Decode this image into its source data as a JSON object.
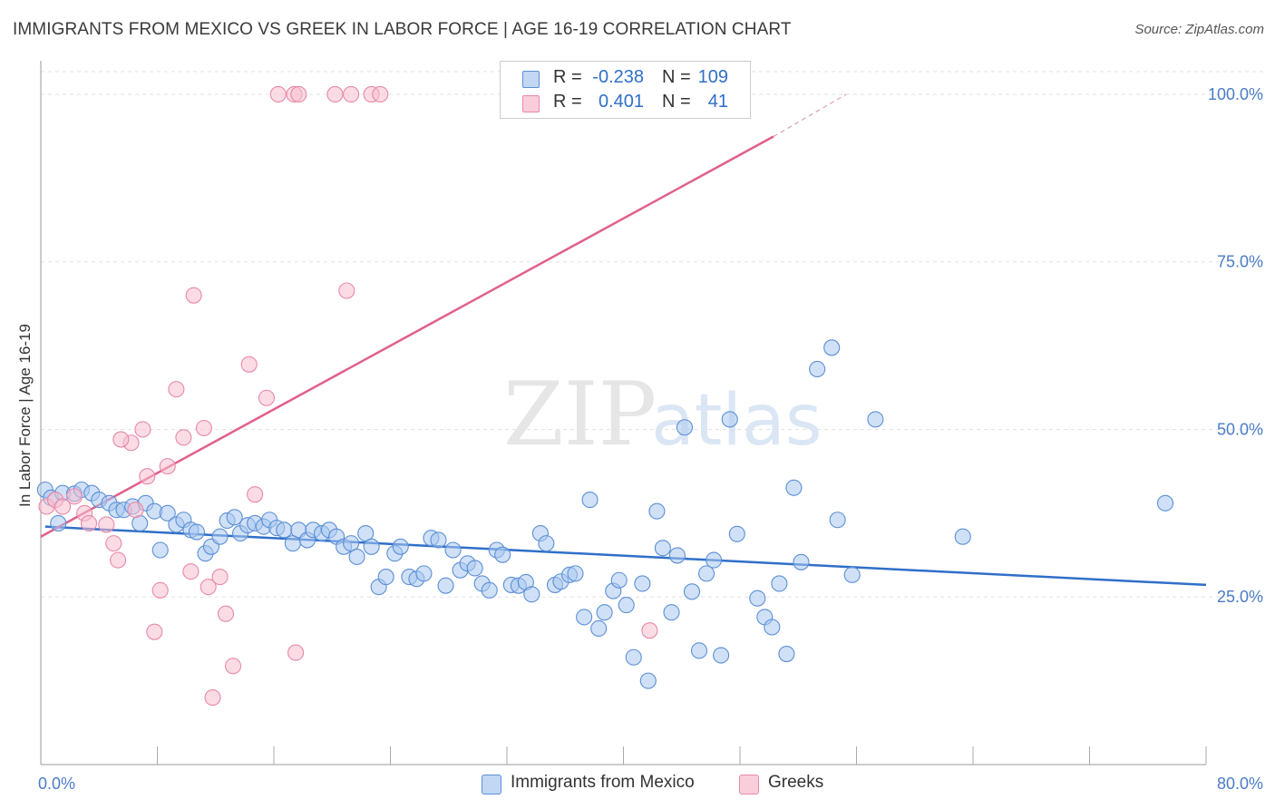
{
  "title": "IMMIGRANTS FROM MEXICO VS GREEK IN LABOR FORCE | AGE 16-19 CORRELATION CHART",
  "source": "Source: ZipAtlas.com",
  "watermark": {
    "zip": "ZIP",
    "atlas": "atlas"
  },
  "legend": {
    "r_label": "R =",
    "n_label": "N =",
    "rows": [
      {
        "r": "-0.238",
        "n": "109"
      },
      {
        "r": "0.401",
        "n": "41"
      }
    ]
  },
  "colors": {
    "mexico_fill": "#a9c8f0",
    "mexico_stroke": "#5b8fd6",
    "mexico_line": "#2f6fc9",
    "greek_fill": "#f7bfd0",
    "greek_stroke": "#e888a8",
    "greek_line": "#e0608a",
    "grid": "#e2e2e2",
    "tick_text": "#4a7cc7"
  },
  "chart_data": {
    "type": "scatter",
    "ylabel": "In Labor Force | Age 16-19",
    "xlim": [
      0,
      80
    ],
    "ylim": [
      0,
      105
    ],
    "y_ticks": [
      {
        "value": 25,
        "label": "25.0%"
      },
      {
        "value": 50,
        "label": "50.0%"
      },
      {
        "value": 75,
        "label": "75.0%"
      },
      {
        "value": 100,
        "label": "100.0%"
      }
    ],
    "x_tick_labels": [
      {
        "value": 0,
        "label": "0.0%"
      },
      {
        "value": 80,
        "label": "80.0%"
      }
    ],
    "x_minor_ticks": [
      8,
      16,
      24,
      32,
      40,
      48,
      56,
      64,
      72
    ],
    "grid": true,
    "series": [
      {
        "name": "Immigrants from Mexico",
        "key": "mexico",
        "trend": {
          "x0": 0.3,
          "y0": 35.5,
          "x1": 80,
          "y1": 26.8
        },
        "points": [
          [
            0.3,
            41
          ],
          [
            0.7,
            39.8
          ],
          [
            1.2,
            36
          ],
          [
            1.5,
            40.5
          ],
          [
            2.3,
            40.4
          ],
          [
            2.8,
            41
          ],
          [
            3.5,
            40.5
          ],
          [
            4,
            39.5
          ],
          [
            4.7,
            39
          ],
          [
            5.2,
            38
          ],
          [
            5.7,
            38
          ],
          [
            6.3,
            38.5
          ],
          [
            6.8,
            36
          ],
          [
            7.2,
            39
          ],
          [
            7.8,
            37.8
          ],
          [
            8.2,
            32
          ],
          [
            8.7,
            37.5
          ],
          [
            9.3,
            35.8
          ],
          [
            9.8,
            36.5
          ],
          [
            10.3,
            35
          ],
          [
            10.7,
            34.7
          ],
          [
            11.3,
            31.5
          ],
          [
            11.7,
            32.5
          ],
          [
            12.3,
            34
          ],
          [
            12.8,
            36.4
          ],
          [
            13.3,
            36.9
          ],
          [
            13.7,
            34.5
          ],
          [
            14.2,
            35.7
          ],
          [
            14.7,
            36
          ],
          [
            15.3,
            35.5
          ],
          [
            15.7,
            36.5
          ],
          [
            16.2,
            35.3
          ],
          [
            16.7,
            35
          ],
          [
            17.3,
            33
          ],
          [
            17.7,
            35
          ],
          [
            18.3,
            33.5
          ],
          [
            18.7,
            35
          ],
          [
            19.3,
            34.5
          ],
          [
            19.8,
            35
          ],
          [
            20.3,
            34
          ],
          [
            20.8,
            32.5
          ],
          [
            21.3,
            33
          ],
          [
            21.7,
            31
          ],
          [
            22.3,
            34.5
          ],
          [
            22.7,
            32.5
          ],
          [
            23.2,
            26.5
          ],
          [
            23.7,
            28
          ],
          [
            24.3,
            31.5
          ],
          [
            24.7,
            32.5
          ],
          [
            25.3,
            28
          ],
          [
            25.8,
            27.7
          ],
          [
            26.3,
            28.5
          ],
          [
            26.8,
            33.8
          ],
          [
            27.3,
            33.5
          ],
          [
            27.8,
            26.7
          ],
          [
            28.3,
            32
          ],
          [
            28.8,
            29
          ],
          [
            29.3,
            30
          ],
          [
            29.8,
            29.3
          ],
          [
            30.3,
            27
          ],
          [
            30.8,
            26
          ],
          [
            31.3,
            32
          ],
          [
            31.7,
            31.3
          ],
          [
            32.3,
            26.8
          ],
          [
            32.8,
            26.7
          ],
          [
            33.3,
            27.2
          ],
          [
            33.7,
            25.4
          ],
          [
            34.3,
            34.5
          ],
          [
            34.7,
            33
          ],
          [
            35.3,
            26.8
          ],
          [
            35.7,
            27.3
          ],
          [
            36.3,
            28.3
          ],
          [
            36.7,
            28.5
          ],
          [
            37.3,
            22
          ],
          [
            37.7,
            39.5
          ],
          [
            38.3,
            20.3
          ],
          [
            38.7,
            22.7
          ],
          [
            39.3,
            25.9
          ],
          [
            39.7,
            27.5
          ],
          [
            40.2,
            23.8
          ],
          [
            40.7,
            16
          ],
          [
            41.3,
            27
          ],
          [
            41.7,
            12.5
          ],
          [
            42.3,
            37.8
          ],
          [
            42.7,
            32.3
          ],
          [
            43.3,
            22.7
          ],
          [
            43.7,
            31.2
          ],
          [
            44.2,
            50.3
          ],
          [
            44.7,
            25.8
          ],
          [
            45.2,
            17
          ],
          [
            45.7,
            28.5
          ],
          [
            46.2,
            30.5
          ],
          [
            46.7,
            16.3
          ],
          [
            47.3,
            51.5
          ],
          [
            47.8,
            34.4
          ],
          [
            49.2,
            24.8
          ],
          [
            49.7,
            22
          ],
          [
            50.2,
            20.5
          ],
          [
            50.7,
            27
          ],
          [
            51.2,
            16.5
          ],
          [
            51.7,
            41.3
          ],
          [
            52.2,
            30.2
          ],
          [
            53.3,
            59
          ],
          [
            54.3,
            62.2
          ],
          [
            54.7,
            36.5
          ],
          [
            55.7,
            28.3
          ],
          [
            57.3,
            51.5
          ],
          [
            63.3,
            34
          ],
          [
            77.2,
            39
          ]
        ]
      },
      {
        "name": "Greeks",
        "key": "greek",
        "trend": {
          "x0": 0,
          "y0": 34,
          "x1": 50.3,
          "y1": 93.7
        },
        "trend_dash": {
          "x0": 50.3,
          "y0": 93.7,
          "x1": 55.3,
          "y1": 100
        },
        "points": [
          [
            0.4,
            38.5
          ],
          [
            1,
            39.5
          ],
          [
            1.5,
            38.5
          ],
          [
            2.3,
            40
          ],
          [
            3,
            37.5
          ],
          [
            3.3,
            36
          ],
          [
            4.5,
            35.8
          ],
          [
            5,
            33
          ],
          [
            5.3,
            30.5
          ],
          [
            6.2,
            48
          ],
          [
            6.5,
            38
          ],
          [
            7.3,
            43
          ],
          [
            7.8,
            19.8
          ],
          [
            8.2,
            26
          ],
          [
            8.7,
            44.5
          ],
          [
            9.3,
            56
          ],
          [
            9.8,
            48.8
          ],
          [
            10.3,
            28.8
          ],
          [
            10.5,
            70
          ],
          [
            11.2,
            50.2
          ],
          [
            11.5,
            26.5
          ],
          [
            11.8,
            10
          ],
          [
            12.3,
            28
          ],
          [
            12.7,
            22.5
          ],
          [
            13.2,
            14.7
          ],
          [
            14.3,
            59.7
          ],
          [
            14.7,
            40.3
          ],
          [
            15.5,
            54.7
          ],
          [
            16.3,
            100
          ],
          [
            17.4,
            100
          ],
          [
            17.7,
            100
          ],
          [
            17.5,
            16.7
          ],
          [
            20.2,
            100
          ],
          [
            21,
            70.7
          ],
          [
            21.3,
            100
          ],
          [
            22.7,
            100
          ],
          [
            23.3,
            100
          ],
          [
            32.2,
            100
          ],
          [
            41.8,
            20
          ],
          [
            7,
            50
          ],
          [
            5.5,
            48.5
          ]
        ]
      }
    ]
  },
  "bottom_legend": [
    {
      "label": "Immigrants from Mexico"
    },
    {
      "label": "Greeks"
    }
  ]
}
